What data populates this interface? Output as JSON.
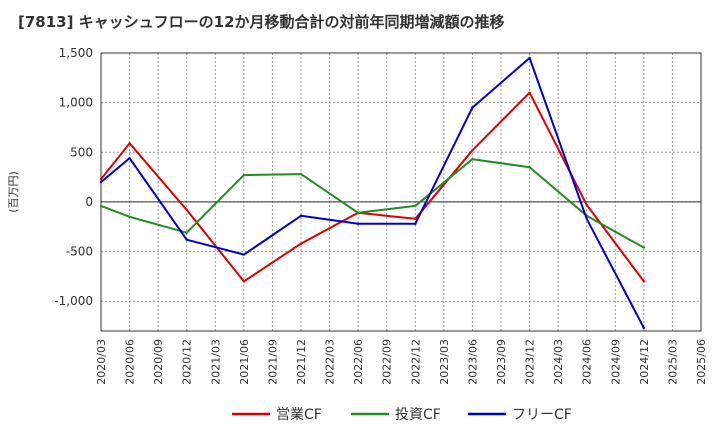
{
  "chart_data": {
    "type": "line",
    "title": "[7813]  キャッシュフローの12か月移動合計の対前年同期増減額の推移",
    "ylabel": "(百万円)",
    "xlabel": "",
    "ylim": [
      -1300,
      1500
    ],
    "yticks": [
      1500,
      1000,
      500,
      0,
      -500,
      -1000
    ],
    "ytick_labels": [
      "1,500",
      "1,000",
      "500",
      "0",
      "-500",
      "-1,000"
    ],
    "categories": [
      "2020/03",
      "2020/06",
      "2020/09",
      "2020/12",
      "2021/03",
      "2021/06",
      "2021/09",
      "2021/12",
      "2022/03",
      "2022/06",
      "2022/09",
      "2022/12",
      "2023/03",
      "2023/06",
      "2023/09",
      "2023/12",
      "2024/03",
      "2024/06",
      "2024/09",
      "2024/12",
      "2025/03",
      "2025/06"
    ],
    "series": [
      {
        "name": "営業CF",
        "color": "#dd0000",
        "values": [
          230,
          590,
          null,
          -80,
          null,
          -800,
          null,
          -420,
          null,
          -110,
          null,
          -170,
          null,
          520,
          null,
          1100,
          null,
          -30,
          null,
          -800,
          null,
          null
        ]
      },
      {
        "name": "投資CF",
        "color": "#228b22",
        "values": [
          -40,
          -150,
          null,
          -310,
          null,
          270,
          null,
          280,
          null,
          -110,
          null,
          -40,
          null,
          430,
          null,
          350,
          null,
          -140,
          null,
          -460,
          null,
          null
        ]
      },
      {
        "name": "フリーCF",
        "color": "#0000cc",
        "values": [
          200,
          440,
          null,
          -380,
          null,
          -530,
          null,
          -140,
          null,
          -220,
          null,
          -220,
          null,
          950,
          null,
          1450,
          null,
          -170,
          null,
          -1270,
          null,
          null
        ]
      }
    ],
    "grid": true,
    "legend": "bottom"
  }
}
